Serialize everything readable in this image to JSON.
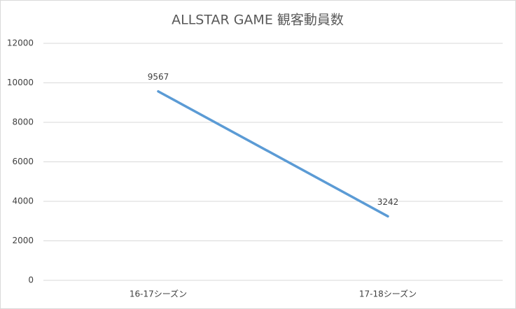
{
  "chart_data": {
    "type": "line",
    "title": "ALLSTAR GAME 観客動員数",
    "categories": [
      "16-17シーズン",
      "17-18シーズン"
    ],
    "values": [
      9567,
      3242
    ],
    "color": "#5b9bd5",
    "ylim": [
      0,
      12000
    ],
    "yticks": [
      0,
      2000,
      4000,
      6000,
      8000,
      10000,
      12000
    ],
    "grid": true
  }
}
